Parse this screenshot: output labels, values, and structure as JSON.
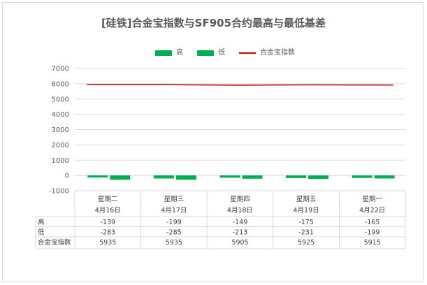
{
  "chart_data": {
    "type": "bar",
    "title": "[硅铁]合金宝指数与SF905合约最高与最低基差",
    "categories": [
      "星期二",
      "星期三",
      "星期四",
      "星期五",
      "星期一"
    ],
    "dates": [
      "4月16日",
      "4月17日",
      "4月18日",
      "4月19日",
      "4月22日"
    ],
    "ylim": [
      -1000,
      7000
    ],
    "yticks": [
      -1000,
      0,
      1000,
      2000,
      3000,
      4000,
      5000,
      6000,
      7000
    ],
    "grid": true,
    "legend_position": "top",
    "series": [
      {
        "name": "高",
        "type": "bar",
        "color": "#00b050",
        "values": [
          -139,
          -199,
          -149,
          -175,
          -165
        ]
      },
      {
        "name": "低",
        "type": "bar",
        "color": "#00b050",
        "values": [
          -283,
          -285,
          -213,
          -231,
          -199
        ]
      },
      {
        "name": "合金宝指数",
        "type": "line",
        "color": "#c00000",
        "values": [
          5935,
          5935,
          5905,
          5925,
          5915
        ]
      }
    ]
  }
}
